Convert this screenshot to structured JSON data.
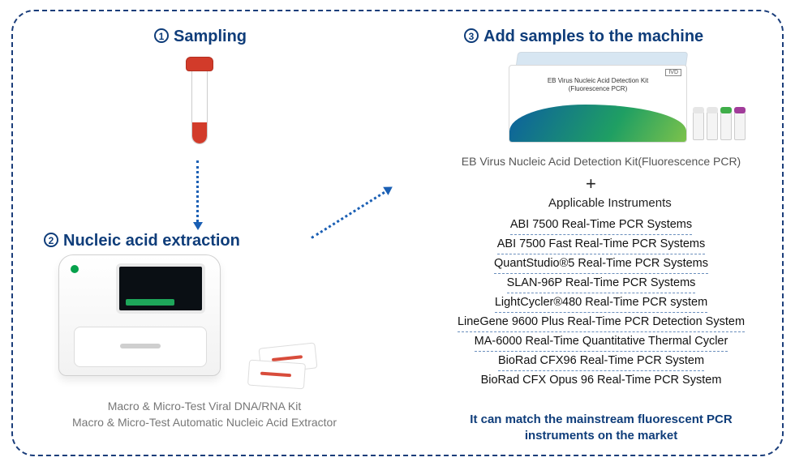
{
  "colors": {
    "border": "#1a3d7a",
    "title": "#0f3d7a",
    "arrow": "#1a5fb4",
    "tube_red": "#d23b2a",
    "caption_gray": "#777777",
    "instrument_text": "#111111",
    "dash_underline": "#6b8fbd"
  },
  "steps": {
    "s1": {
      "num": "1",
      "title": "Sampling"
    },
    "s2": {
      "num": "2",
      "title": "Nucleic acid extraction"
    },
    "s3": {
      "num": "3",
      "title": "Add samples to the machine"
    }
  },
  "step2_caption": "Macro & Micro-Test Viral DNA/RNA Kit\nMacro & Micro-Test Automatic Nucleic Acid Extractor",
  "kit_box": {
    "line1": "EB Virus Nucleic Acid Detection Kit",
    "line2": "(Fluorescence PCR)",
    "ivd": "IVD"
  },
  "vial_cap_colors": [
    "#e6e6e6",
    "#e6e6e6",
    "#3fae49",
    "#a13c9a"
  ],
  "kit_caption": "EB Virus Nucleic Acid Detection Kit(Fluorescence PCR)",
  "plus": "+",
  "applicable_title": "Applicable Instruments",
  "instruments": [
    "ABI 7500 Real-Time PCR Systems",
    "ABI 7500 Fast Real-Time PCR Systems",
    "QuantStudio®5 Real-Time PCR Systems",
    "SLAN-96P Real-Time PCR Systems",
    "LightCycler®480 Real-Time PCR system",
    "LineGene 9600 Plus Real-Time PCR Detection System",
    "MA-6000 Real-Time Quantitative Thermal Cycler",
    "BioRad CFX96 Real-Time PCR System",
    "BioRad CFX Opus 96 Real-Time PCR System"
  ],
  "footnote": "It can match the mainstream fluorescent PCR instruments on the market"
}
